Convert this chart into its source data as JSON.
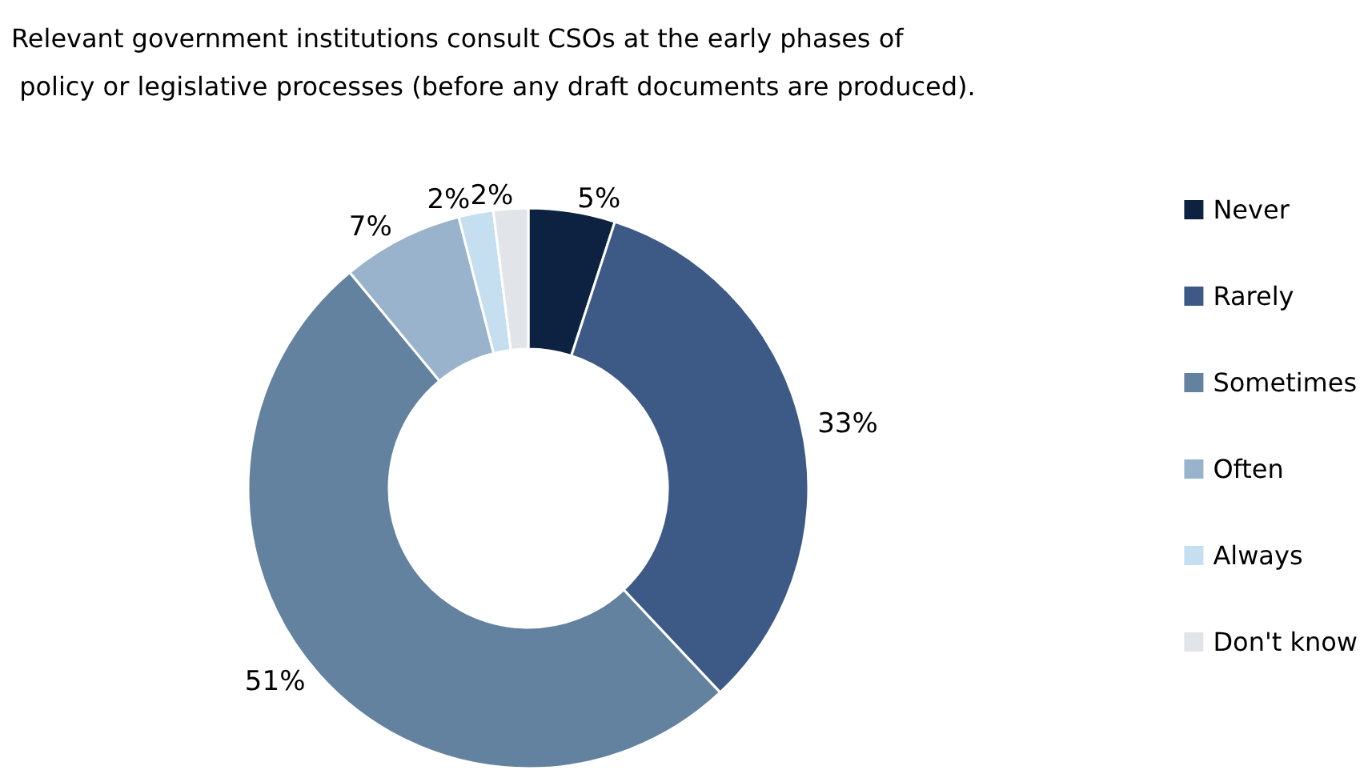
{
  "chart_data": {
    "type": "donut",
    "title": "Relevant government institutions consult CSOs at the early phases of\n policy or legislative processes (before any draft documents are produced).",
    "categories": [
      "Never",
      "Rarely",
      "Sometimes",
      "Often",
      "Always",
      "Don't know"
    ],
    "values": [
      5,
      33,
      51,
      7,
      2,
      2
    ],
    "value_labels": [
      "5%",
      "33%",
      "51%",
      "7%",
      "2%",
      "2%"
    ],
    "colors": [
      "#0d2240",
      "#3c5a85",
      "#62829f",
      "#9ab3cc",
      "#c5def0",
      "#e1e5ea"
    ],
    "legend": "right"
  }
}
